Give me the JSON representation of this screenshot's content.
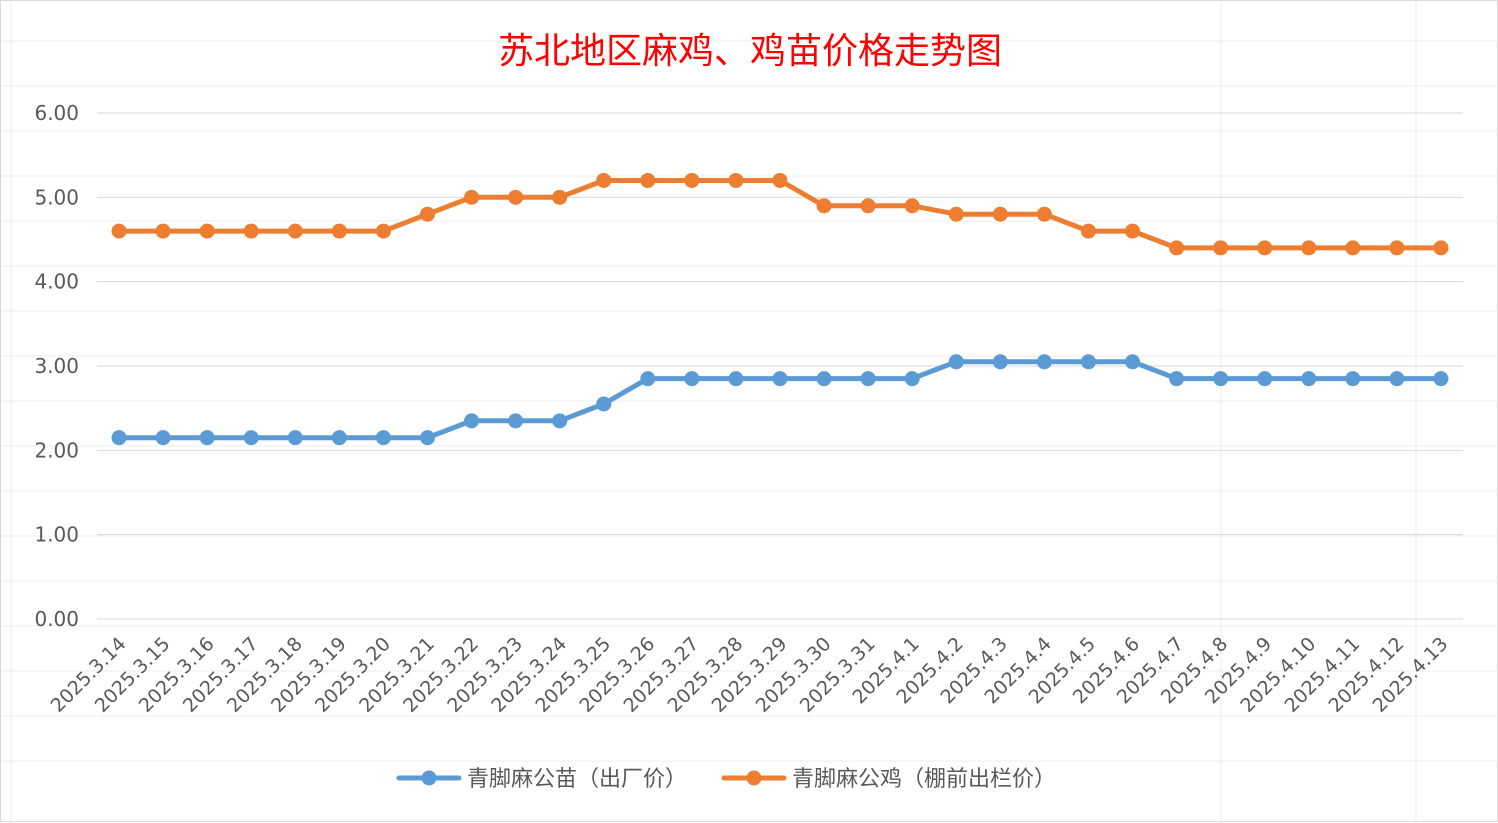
{
  "chart_data": {
    "type": "line",
    "title": "苏北地区麻鸡、鸡苗价格走势图",
    "categories": [
      "2025.3.14",
      "2025.3.15",
      "2025.3.16",
      "2025.3.17",
      "2025.3.18",
      "2025.3.19",
      "2025.3.20",
      "2025.3.21",
      "2025.3.22",
      "2025.3.23",
      "2025.3.24",
      "2025.3.25",
      "2025.3.26",
      "2025.3.27",
      "2025.3.28",
      "2025.3.29",
      "2025.3.30",
      "2025.3.31",
      "2025.4.1",
      "2025.4.2",
      "2025.4.3",
      "2025.4.4",
      "2025.4.5",
      "2025.4.6",
      "2025.4.7",
      "2025.4.8",
      "2025.4.9",
      "2025.4.10",
      "2025.4.11",
      "2025.4.12",
      "2025.4.13"
    ],
    "series": [
      {
        "name": "青脚麻公苗（出厂价）",
        "color": "#5b9bd5",
        "values": [
          2.15,
          2.15,
          2.15,
          2.15,
          2.15,
          2.15,
          2.15,
          2.15,
          2.35,
          2.35,
          2.35,
          2.55,
          2.85,
          2.85,
          2.85,
          2.85,
          2.85,
          2.85,
          2.85,
          3.05,
          3.05,
          3.05,
          3.05,
          3.05,
          2.85,
          2.85,
          2.85,
          2.85,
          2.85,
          2.85,
          2.85
        ]
      },
      {
        "name": "青脚麻公鸡（棚前出栏价）",
        "color": "#ed7d31",
        "values": [
          4.6,
          4.6,
          4.6,
          4.6,
          4.6,
          4.6,
          4.6,
          4.8,
          5.0,
          5.0,
          5.0,
          5.2,
          5.2,
          5.2,
          5.2,
          5.2,
          4.9,
          4.9,
          4.9,
          4.8,
          4.8,
          4.8,
          4.6,
          4.6,
          4.4,
          4.4,
          4.4,
          4.4,
          4.4,
          4.4,
          4.4
        ]
      }
    ],
    "ylim": [
      0,
      6
    ],
    "yticks": [
      "0.00",
      "1.00",
      "2.00",
      "3.00",
      "4.00",
      "5.00",
      "6.00"
    ],
    "xlabel": "",
    "ylabel": "",
    "grid": true,
    "legend": "bottom-center"
  }
}
